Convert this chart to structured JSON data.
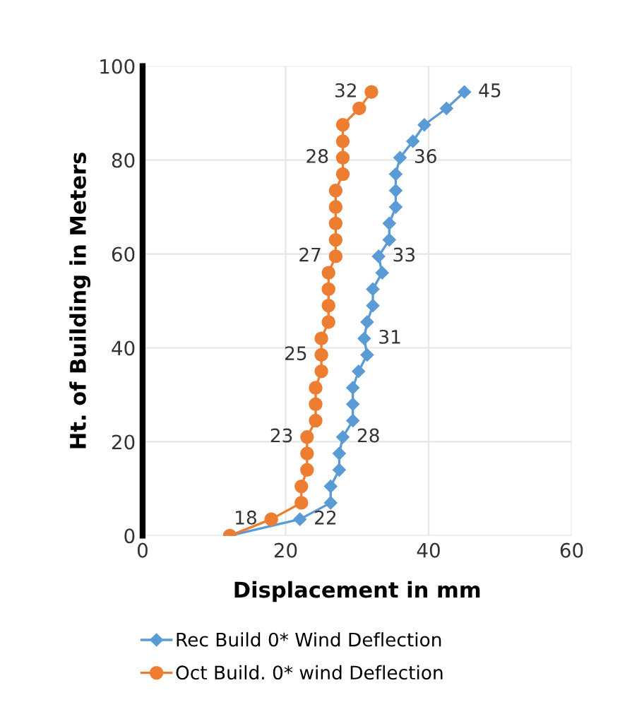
{
  "chart_data": {
    "type": "line",
    "xlabel": "Displacement in mm",
    "ylabel": "Ht. of Building in Meters",
    "xlim": [
      0,
      60
    ],
    "xticks": [
      0,
      20,
      40,
      60
    ],
    "ylim": [
      0,
      100
    ],
    "yticks": [
      0,
      20,
      40,
      60,
      80,
      100
    ],
    "grid": true,
    "legend": "bottom",
    "series": [
      {
        "name": "Rec Build 0* Wind Deflection",
        "color": "#5b9bd5",
        "marker": "diamond",
        "x": [
          12.2,
          22,
          26.3,
          26.3,
          27.5,
          27.5,
          28,
          29.4,
          29.4,
          29.4,
          30.2,
          31.4,
          31,
          31.4,
          32.2,
          32.2,
          33.5,
          33,
          34.5,
          34.5,
          35.4,
          35.4,
          35.4,
          36,
          37.8,
          39.4,
          42.5,
          45
        ],
        "values": [
          0,
          3.5,
          7,
          10.5,
          14,
          17.5,
          21,
          24.5,
          28,
          31.5,
          35,
          38.5,
          42,
          45.5,
          49,
          52.5,
          56,
          59.5,
          63,
          66.5,
          70,
          73.5,
          77,
          80.5,
          84,
          87.5,
          91,
          94.5
        ]
      },
      {
        "name": "Oct Build. 0* wind Deflection",
        "color": "#ed7d31",
        "marker": "circle",
        "x": [
          12.2,
          18,
          22.2,
          22.2,
          23,
          23,
          23,
          24.2,
          24.2,
          24.2,
          25,
          25,
          25,
          26,
          26,
          26,
          26,
          27,
          27,
          27,
          27,
          27,
          28,
          28,
          28,
          28,
          30.3,
          32
        ],
        "values": [
          0,
          3.5,
          7,
          10.5,
          14,
          17.5,
          21,
          24.5,
          28,
          31.5,
          35,
          38.5,
          42,
          45.5,
          49,
          52.5,
          56,
          59.5,
          63,
          66.5,
          70,
          73.5,
          77,
          80.5,
          84,
          87.5,
          91,
          94.5
        ]
      }
    ],
    "annotations": [
      {
        "text": "22",
        "x": 22,
        "y": 3.5
      },
      {
        "text": "28",
        "x": 28,
        "y": 21
      },
      {
        "text": "31",
        "x": 31,
        "y": 42
      },
      {
        "text": "33",
        "x": 33,
        "y": 59.5
      },
      {
        "text": "36",
        "x": 36,
        "y": 80.5
      },
      {
        "text": "45",
        "x": 45,
        "y": 94.5
      },
      {
        "text": "18",
        "x": 18,
        "y": 3.5
      },
      {
        "text": "23",
        "x": 23,
        "y": 21
      },
      {
        "text": "25",
        "x": 25,
        "y": 38.5
      },
      {
        "text": "27",
        "x": 27,
        "y": 59.5
      },
      {
        "text": "28",
        "x": 28,
        "y": 80.5
      },
      {
        "text": "32",
        "x": 32,
        "y": 94.5
      }
    ]
  }
}
